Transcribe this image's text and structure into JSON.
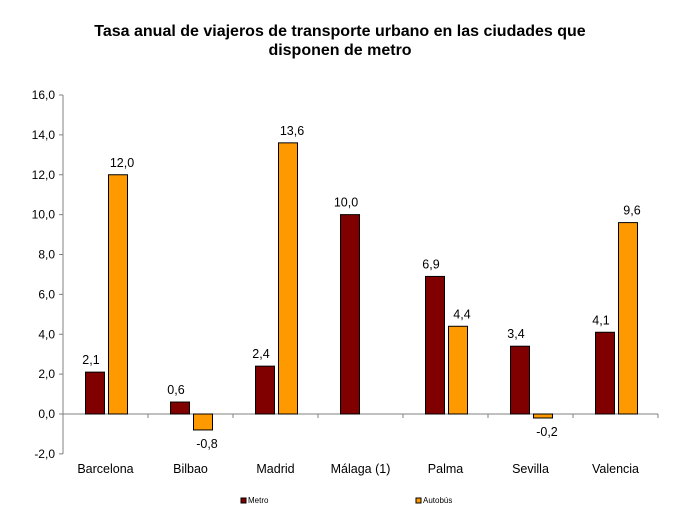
{
  "chart_data": {
    "type": "bar",
    "title": "Tasa anual de viajeros de transporte urbano en las ciudades que disponen de metro",
    "title_lines": [
      "Tasa anual de viajeros de transporte urbano en las ciudades que",
      "disponen de metro"
    ],
    "xlabel": "",
    "ylabel": "",
    "ylim": [
      -2,
      16
    ],
    "yticks": [
      -2,
      0,
      2,
      4,
      6,
      8,
      10,
      12,
      14,
      16
    ],
    "ytick_labels": [
      "-2,0",
      "0,0",
      "2,0",
      "4,0",
      "6,0",
      "8,0",
      "10,0",
      "12,0",
      "14,0",
      "16,0"
    ],
    "categories": [
      "Barcelona",
      "Bilbao",
      "Madrid",
      "Málaga (1)",
      "Palma",
      "Sevilla",
      "Valencia"
    ],
    "series": [
      {
        "name": "Metro",
        "color": "#800000",
        "values": [
          2.1,
          0.6,
          2.4,
          10.0,
          6.9,
          3.4,
          4.1
        ],
        "labels": [
          "2,1",
          "0,6",
          "2,4",
          "10,0",
          "6,9",
          "3,4",
          "4,1"
        ]
      },
      {
        "name": "Autobús",
        "color": "#FF9900",
        "values": [
          12.0,
          -0.8,
          13.6,
          null,
          4.4,
          -0.2,
          9.6
        ],
        "labels": [
          "12,0",
          "-0,8",
          "13,6",
          null,
          "4,4",
          "-0,2",
          "9,6"
        ]
      }
    ],
    "legend_position": "bottom",
    "grid": false
  }
}
